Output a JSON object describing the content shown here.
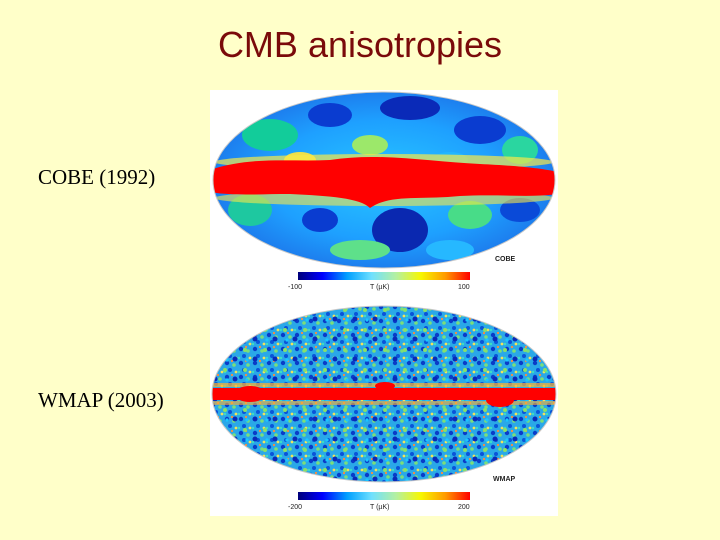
{
  "slide": {
    "title": "CMB anisotropies"
  },
  "panels": [
    {
      "label": "COBE (1992)",
      "mission_tag": "COBE",
      "colorbar": {
        "min": "-100",
        "unit": "T (µK)",
        "max": "100"
      }
    },
    {
      "label": "WMAP (2003)",
      "mission_tag": "WMAP",
      "colorbar": {
        "min": "-200",
        "unit": "T (µK)",
        "max": "200"
      }
    }
  ],
  "colors": {
    "background": "#ffffc9",
    "title": "#7a0a0a",
    "galactic_plane": "#ff0000"
  }
}
